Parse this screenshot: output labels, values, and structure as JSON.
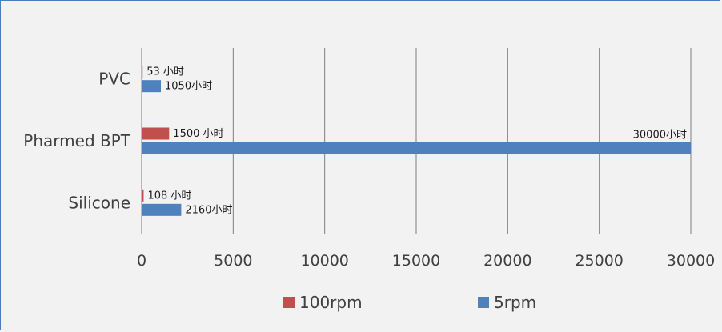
{
  "chart_data": {
    "type": "bar",
    "orientation": "horizontal",
    "categories": [
      "PVC",
      "Pharmed BPT",
      "Silicone"
    ],
    "series": [
      {
        "name": "100rpm",
        "color": "#c0504d",
        "values": [
          53,
          1500,
          108
        ],
        "labels": [
          "53 小时",
          "1500 小时",
          "108 小时"
        ]
      },
      {
        "name": "5rpm",
        "color": "#4f81bd",
        "values": [
          1050,
          30000,
          2160
        ],
        "labels": [
          "1050小时",
          "30000小时",
          "2160小时"
        ]
      }
    ],
    "xticks": [
      "0",
      "5000",
      "10000",
      "15000",
      "20000",
      "25000",
      "30000"
    ],
    "xlim": [
      0,
      30000
    ],
    "grid": true,
    "legend_position": "bottom",
    "title": "",
    "xlabel": "",
    "ylabel": ""
  }
}
